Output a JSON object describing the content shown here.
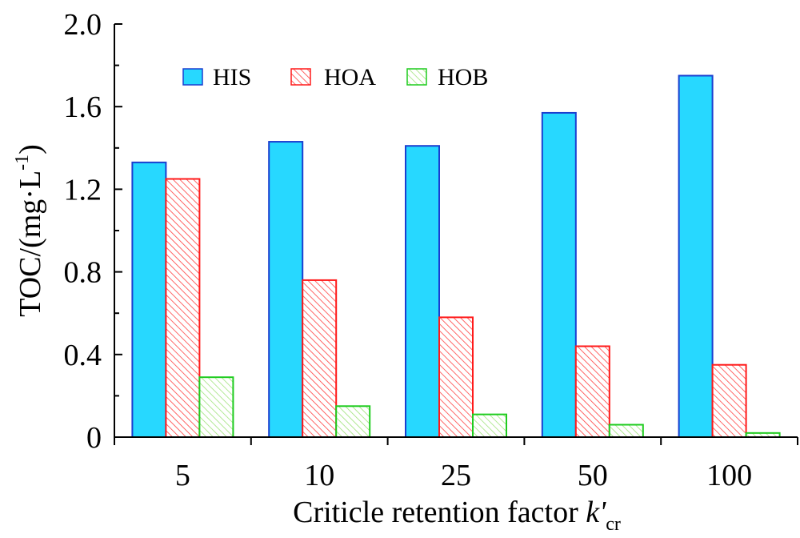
{
  "chart_data": {
    "type": "bar",
    "categories": [
      "5",
      "10",
      "25",
      "50",
      "100"
    ],
    "series": [
      {
        "name": "HIS",
        "values": [
          1.33,
          1.43,
          1.41,
          1.57,
          1.75
        ],
        "fill": "#27d8ff",
        "stroke": "#1a3fd0",
        "pattern": "solid"
      },
      {
        "name": "HOA",
        "values": [
          1.25,
          0.76,
          0.58,
          0.44,
          0.35
        ],
        "fill": "#ffffff",
        "stroke": "#ff1a1a",
        "pattern": "hatch"
      },
      {
        "name": "HOB",
        "values": [
          0.29,
          0.15,
          0.11,
          0.06,
          0.02
        ],
        "fill": "#ffffff",
        "stroke": "#1fcc1f",
        "pattern": "hatch"
      }
    ],
    "y_ticks": [
      "0",
      "0.4",
      "0.8",
      "1.2",
      "1.6",
      "2.0"
    ],
    "ylim": [
      0,
      2.0
    ],
    "ylabel": {
      "prefix": "TOC/(mg·L",
      "superscript": "-1",
      "suffix": ")"
    },
    "xlabel": {
      "prefix": "Criticle retention factor ",
      "italic": "k'",
      "subscript": "cr"
    },
    "legend": {
      "position": "top-left"
    },
    "grid": false
  }
}
